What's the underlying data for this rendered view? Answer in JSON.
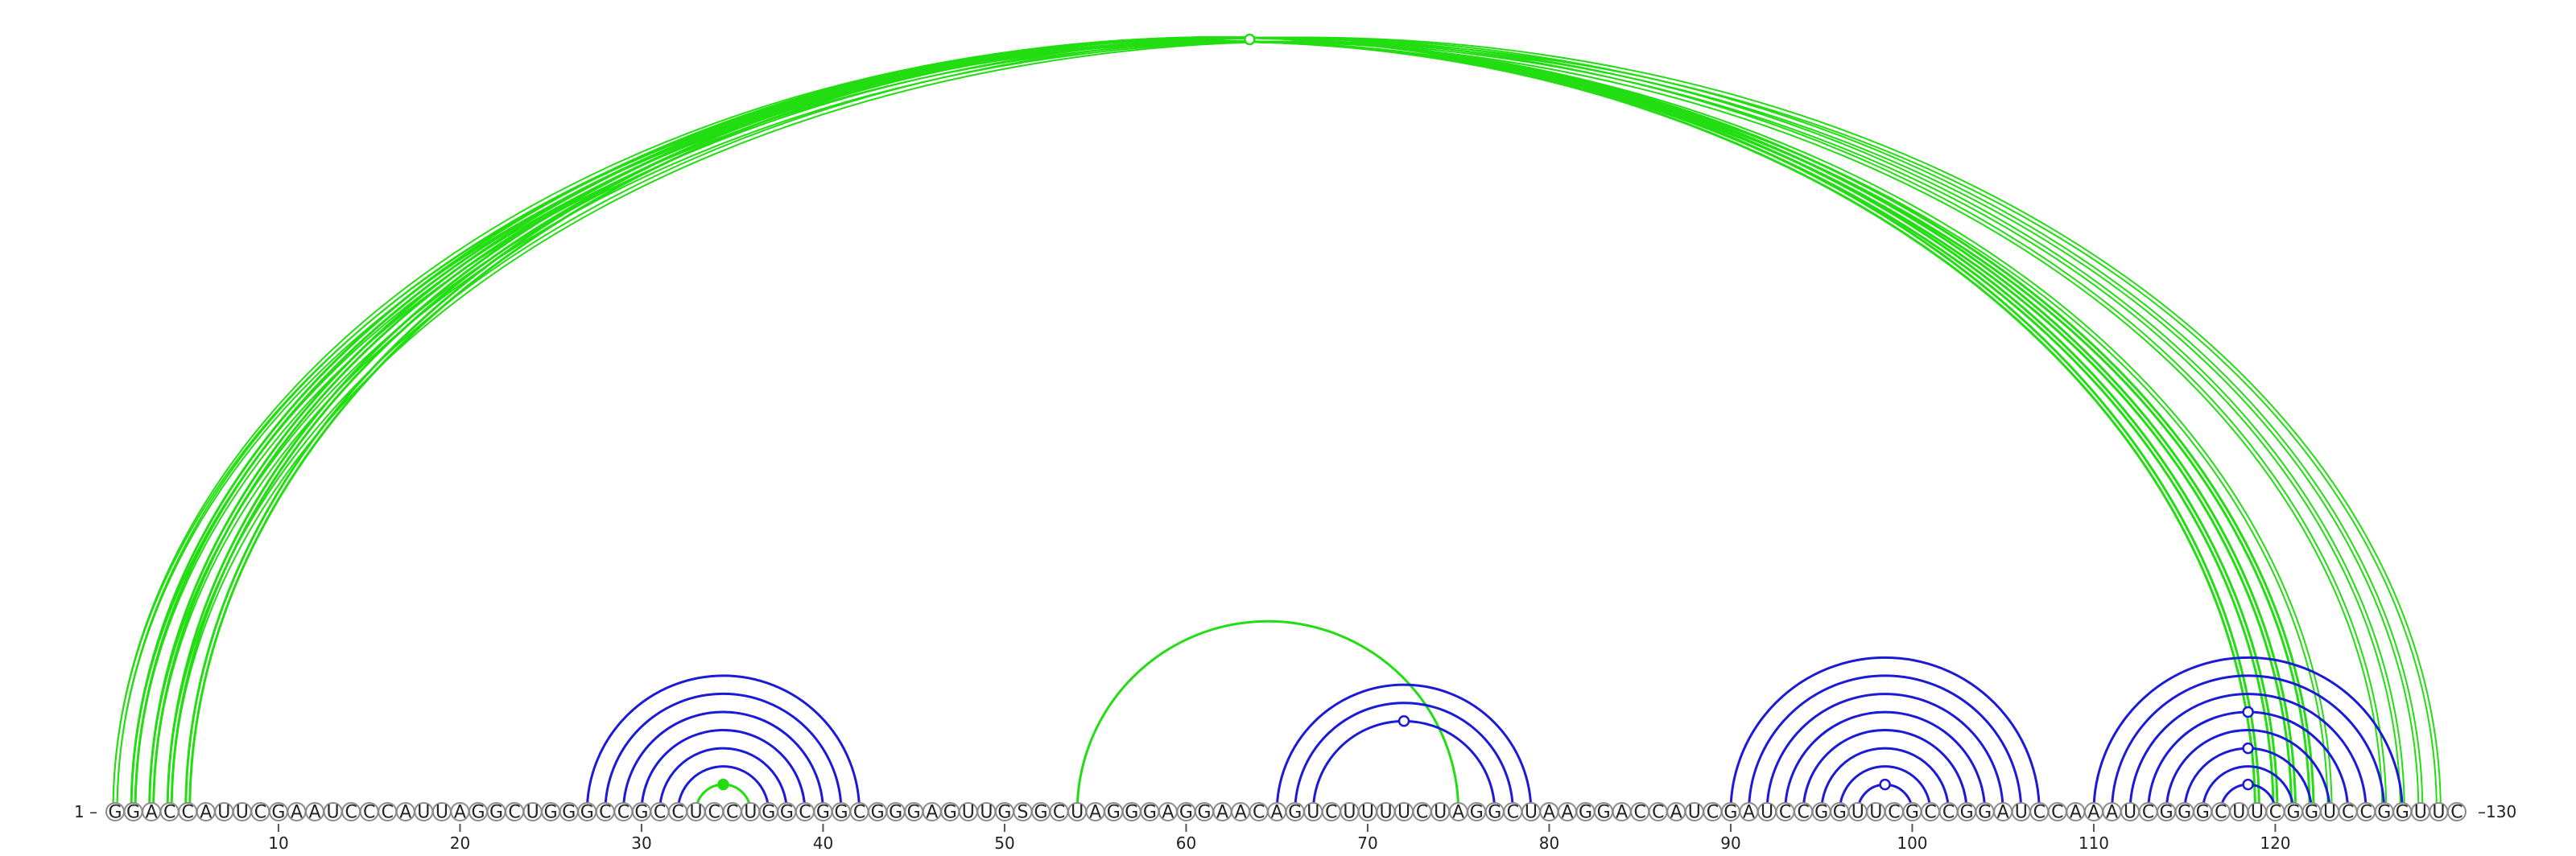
{
  "sequence": "GGACCAUUCGAAUCCCAUUAGGCUGGGCCGCCUCCUGGCGGCGGGAGUUGSGCUAGGGAGGAACAGUCUUUUCUAGGCUAAGGACCAUCGAUCCGGUUCGCCGGAUCCAAAUCGGGCUUCGGUCCGGUUC",
  "start_label": "1 –",
  "end_label": "–130",
  "ticks": [
    10,
    20,
    30,
    40,
    50,
    60,
    70,
    80,
    90,
    100,
    110,
    120
  ],
  "colors": {
    "green": "#22dd11",
    "blue": "#1a1ad8"
  },
  "chart_data": {
    "type": "arc-diagram",
    "length": 130,
    "arcs": [
      {
        "i": 1,
        "j": 123,
        "color": "green",
        "style": "double"
      },
      {
        "i": 2,
        "j": 122,
        "color": "green",
        "style": "thick"
      },
      {
        "i": 3,
        "j": 121,
        "color": "green",
        "style": "thick"
      },
      {
        "i": 4,
        "j": 120,
        "color": "green",
        "style": "thick"
      },
      {
        "i": 5,
        "j": 119,
        "color": "green",
        "style": "thick"
      },
      {
        "i": 1,
        "j": 126,
        "color": "green",
        "style": "thin"
      },
      {
        "i": 2,
        "j": 127,
        "color": "green",
        "style": "thin"
      },
      {
        "i": 3,
        "j": 128,
        "color": "green",
        "style": "thin"
      },
      {
        "i": 4,
        "j": 129,
        "color": "green",
        "style": "thin"
      },
      {
        "i": 54,
        "j": 75,
        "color": "green",
        "style": "single"
      },
      {
        "i": 33,
        "j": 36,
        "color": "green",
        "style": "single"
      },
      {
        "i": 27,
        "j": 42,
        "color": "blue"
      },
      {
        "i": 28,
        "j": 41,
        "color": "blue"
      },
      {
        "i": 29,
        "j": 40,
        "color": "blue"
      },
      {
        "i": 30,
        "j": 39,
        "color": "blue"
      },
      {
        "i": 31,
        "j": 38,
        "color": "blue"
      },
      {
        "i": 32,
        "j": 37,
        "color": "blue"
      },
      {
        "i": 65,
        "j": 79,
        "color": "blue"
      },
      {
        "i": 66,
        "j": 78,
        "color": "blue"
      },
      {
        "i": 67,
        "j": 77,
        "color": "blue"
      },
      {
        "i": 90,
        "j": 107,
        "color": "blue"
      },
      {
        "i": 91,
        "j": 106,
        "color": "blue"
      },
      {
        "i": 92,
        "j": 105,
        "color": "blue"
      },
      {
        "i": 93,
        "j": 104,
        "color": "blue"
      },
      {
        "i": 94,
        "j": 103,
        "color": "blue"
      },
      {
        "i": 95,
        "j": 102,
        "color": "blue"
      },
      {
        "i": 96,
        "j": 101,
        "color": "blue"
      },
      {
        "i": 97,
        "j": 100,
        "color": "blue"
      },
      {
        "i": 110,
        "j": 127,
        "color": "blue"
      },
      {
        "i": 111,
        "j": 126,
        "color": "blue"
      },
      {
        "i": 112,
        "j": 125,
        "color": "blue"
      },
      {
        "i": 113,
        "j": 124,
        "color": "blue"
      },
      {
        "i": 114,
        "j": 123,
        "color": "blue"
      },
      {
        "i": 115,
        "j": 122,
        "color": "blue"
      },
      {
        "i": 116,
        "j": 121,
        "color": "blue"
      },
      {
        "i": 117,
        "j": 120,
        "color": "blue"
      }
    ],
    "markers": [
      {
        "i": 1,
        "j": 126,
        "color": "green",
        "filled": false
      },
      {
        "i": 33,
        "j": 36,
        "color": "green",
        "filled": true
      },
      {
        "i": 67,
        "j": 77,
        "color": "blue",
        "filled": false
      },
      {
        "i": 97,
        "j": 100,
        "color": "blue",
        "filled": false
      },
      {
        "i": 113,
        "j": 124,
        "color": "blue",
        "filled": false
      },
      {
        "i": 115,
        "j": 122,
        "color": "blue",
        "filled": false
      },
      {
        "i": 117,
        "j": 120,
        "color": "blue",
        "filled": false
      }
    ]
  }
}
